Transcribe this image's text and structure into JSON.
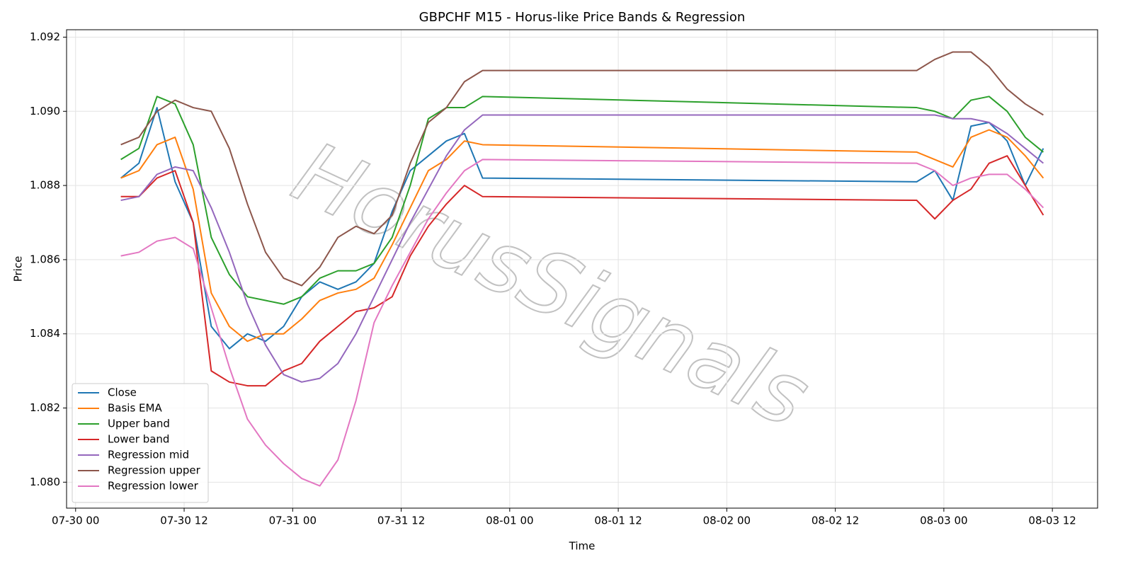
{
  "chart_data": {
    "type": "line",
    "title": "GBPCHF M15 - Horus-like Price Bands & Regression",
    "xlabel": "Time",
    "ylabel": "Price",
    "watermark": "HorusSignals",
    "x": [
      "07-30 05",
      "07-30 07",
      "07-30 09",
      "07-30 11",
      "07-30 13",
      "07-30 15",
      "07-30 17",
      "07-30 19",
      "07-30 21",
      "07-30 23",
      "07-31 01",
      "07-31 03",
      "07-31 05",
      "07-31 07",
      "07-31 09",
      "07-31 11",
      "07-31 13",
      "07-31 15",
      "07-31 17",
      "07-31 19",
      "07-31 21",
      "08-02 21",
      "08-02 23",
      "08-03 01",
      "08-03 03",
      "08-03 05",
      "08-03 07",
      "08-03 09",
      "08-03 11"
    ],
    "series": [
      {
        "name": "Close",
        "color": "#1f77b4",
        "values": [
          1.0882,
          1.0886,
          1.0901,
          1.0881,
          1.087,
          1.0842,
          1.0836,
          1.084,
          1.0838,
          1.0842,
          1.085,
          1.0854,
          1.0852,
          1.0854,
          1.0859,
          1.0873,
          1.0884,
          1.0888,
          1.0892,
          1.0894,
          1.0882,
          1.0881,
          1.0884,
          1.0876,
          1.0896,
          1.0897,
          1.0892,
          1.088,
          1.089
        ]
      },
      {
        "name": "Basis EMA",
        "color": "#ff7f0e",
        "values": [
          1.0882,
          1.0884,
          1.0891,
          1.0893,
          1.0879,
          1.0851,
          1.0842,
          1.0838,
          1.084,
          1.084,
          1.0844,
          1.0849,
          1.0851,
          1.0852,
          1.0855,
          1.0864,
          1.0874,
          1.0884,
          1.0887,
          1.0892,
          1.0891,
          1.0889,
          1.0887,
          1.0885,
          1.0893,
          1.0895,
          1.0893,
          1.0888,
          1.0882
        ]
      },
      {
        "name": "Upper band",
        "color": "#2ca02c",
        "values": [
          1.0887,
          1.089,
          1.0904,
          1.0902,
          1.0891,
          1.0866,
          1.0856,
          1.085,
          1.0849,
          1.0848,
          1.085,
          1.0855,
          1.0857,
          1.0857,
          1.0859,
          1.0866,
          1.088,
          1.0898,
          1.0901,
          1.0901,
          1.0904,
          1.0901,
          1.09,
          1.0898,
          1.0903,
          1.0904,
          1.09,
          1.0893,
          1.0889
        ]
      },
      {
        "name": "Lower band",
        "color": "#d62728",
        "values": [
          1.0877,
          1.0877,
          1.0882,
          1.0884,
          1.087,
          1.083,
          1.0827,
          1.0826,
          1.0826,
          1.083,
          1.0832,
          1.0838,
          1.0842,
          1.0846,
          1.0847,
          1.085,
          1.0861,
          1.0869,
          1.0875,
          1.088,
          1.0877,
          1.0876,
          1.0871,
          1.0876,
          1.0879,
          1.0886,
          1.0888,
          1.088,
          1.0872
        ]
      },
      {
        "name": "Regression mid",
        "color": "#9467bd",
        "values": [
          1.0876,
          1.0877,
          1.0883,
          1.0885,
          1.0884,
          1.0874,
          1.0862,
          1.0848,
          1.0837,
          1.0829,
          1.0827,
          1.0828,
          1.0832,
          1.084,
          1.085,
          1.086,
          1.087,
          1.0879,
          1.0888,
          1.0895,
          1.0899,
          1.0899,
          1.0899,
          1.0898,
          1.0898,
          1.0897,
          1.0894,
          1.089,
          1.0886
        ]
      },
      {
        "name": "Regression upper",
        "color": "#8c564b",
        "values": [
          1.0891,
          1.0893,
          1.09,
          1.0903,
          1.0901,
          1.09,
          1.089,
          1.0875,
          1.0862,
          1.0855,
          1.0853,
          1.0858,
          1.0866,
          1.0869,
          1.0867,
          1.0872,
          1.0886,
          1.0897,
          1.0901,
          1.0908,
          1.0911,
          1.0911,
          1.0914,
          1.0916,
          1.0916,
          1.0912,
          1.0906,
          1.0902,
          1.0899
        ]
      },
      {
        "name": "Regression lower",
        "color": "#e377c2",
        "values": [
          1.0861,
          1.0862,
          1.0865,
          1.0866,
          1.0863,
          1.0847,
          1.0831,
          1.0817,
          1.081,
          1.0805,
          1.0801,
          1.0799,
          1.0806,
          1.0822,
          1.0843,
          1.0853,
          1.0862,
          1.0871,
          1.0878,
          1.0884,
          1.0887,
          1.0886,
          1.0884,
          1.088,
          1.0882,
          1.0883,
          1.0883,
          1.0879,
          1.0874
        ]
      }
    ],
    "xlim": [
      "07-29 23",
      "08-03 17"
    ],
    "xticks": [
      "07-30 00",
      "07-30 12",
      "07-31 00",
      "07-31 12",
      "08-01 00",
      "08-01 12",
      "08-02 00",
      "08-02 12",
      "08-03 00",
      "08-03 12"
    ],
    "ylim": [
      1.0793,
      1.0922
    ],
    "yticks": [
      {
        "value": 1.08,
        "label": "1.080"
      },
      1.082,
      1.084,
      1.086,
      1.088,
      {
        "value": 1.09,
        "label": "1.090"
      },
      1.092
    ],
    "grid": true,
    "legend": "lower left"
  }
}
